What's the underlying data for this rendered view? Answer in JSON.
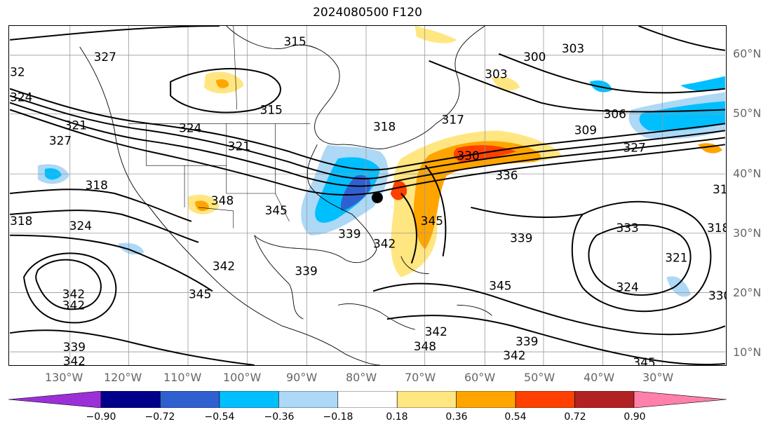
{
  "title": "2024080500 F120",
  "lat_labels": [
    "60°N",
    "50°N",
    "40°N",
    "30°N",
    "20°N",
    "10°N"
  ],
  "lon_labels": [
    "130°W",
    "120°W",
    "110°W",
    "100°W",
    "90°W",
    "80°W",
    "70°W",
    "60°W",
    "50°W",
    "40°W",
    "30°W"
  ],
  "colorbar": {
    "ticks": [
      "−0.90",
      "−0.72",
      "−0.54",
      "−0.36",
      "−0.18",
      "0.18",
      "0.36",
      "0.54",
      "0.72",
      "0.90"
    ],
    "colors": [
      "#9b30d9",
      "#00008b",
      "#3060d0",
      "#00bfff",
      "#add8f6",
      "#ffffff",
      "#ffe680",
      "#ffa500",
      "#ff4000",
      "#b22222",
      "#ff80a8"
    ]
  },
  "contour_labels": [
    "315",
    "327",
    "32",
    "324",
    "321",
    "327",
    "318",
    "318",
    "324",
    "315",
    "324",
    "321",
    "318",
    "345",
    "348",
    "303",
    "300",
    "303",
    "306",
    "309",
    "327",
    "330",
    "336",
    "317",
    "31",
    "339",
    "333",
    "318",
    "321",
    "324",
    "330",
    "342",
    "339",
    "345",
    "342",
    "339",
    "342",
    "342",
    "345",
    "348",
    "342",
    "339",
    "342",
    "345",
    "339",
    "345",
    "342"
  ]
}
